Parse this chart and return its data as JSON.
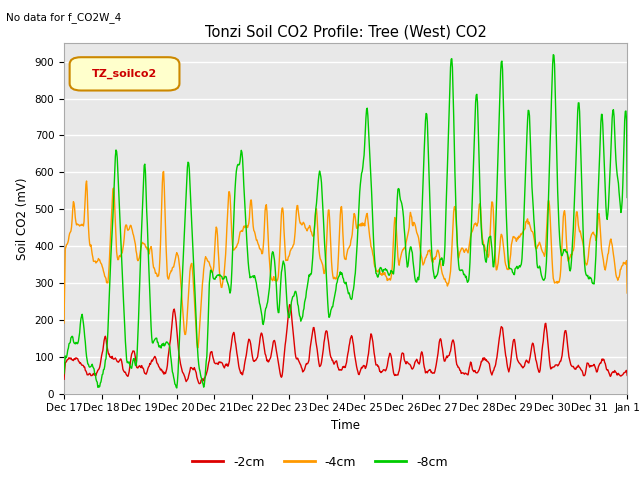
{
  "title": "Tonzi Soil CO2 Profile: Tree (West) CO2",
  "subtitle": "No data for f_CO2W_4",
  "xlabel": "Time",
  "ylabel": "Soil CO2 (mV)",
  "ylim": [
    0,
    950
  ],
  "yticks": [
    0,
    100,
    200,
    300,
    400,
    500,
    600,
    700,
    800,
    900
  ],
  "legend_label": "TZ_soilco2",
  "line_labels": [
    "-2cm",
    "-4cm",
    "-8cm"
  ],
  "line_colors": [
    "#dd0000",
    "#ff9900",
    "#00cc00"
  ],
  "background_color": "#ffffff",
  "plot_bg_color": "#e8e8e8",
  "grid_color": "#ffffff",
  "n_points": 900,
  "x_tick_labels": [
    "Dec 17",
    "Dec 18",
    "Dec 19",
    "Dec 20",
    "Dec 21",
    "Dec 22",
    "Dec 23",
    "Dec 24",
    "Dec 25",
    "Dec 26",
    "Dec 27",
    "Dec 28",
    "Dec 29",
    "Dec 30",
    "Dec 31",
    "Jan 1"
  ],
  "x_tick_positions": [
    0,
    60,
    120,
    180,
    240,
    300,
    360,
    420,
    480,
    540,
    600,
    660,
    720,
    780,
    840,
    900
  ]
}
